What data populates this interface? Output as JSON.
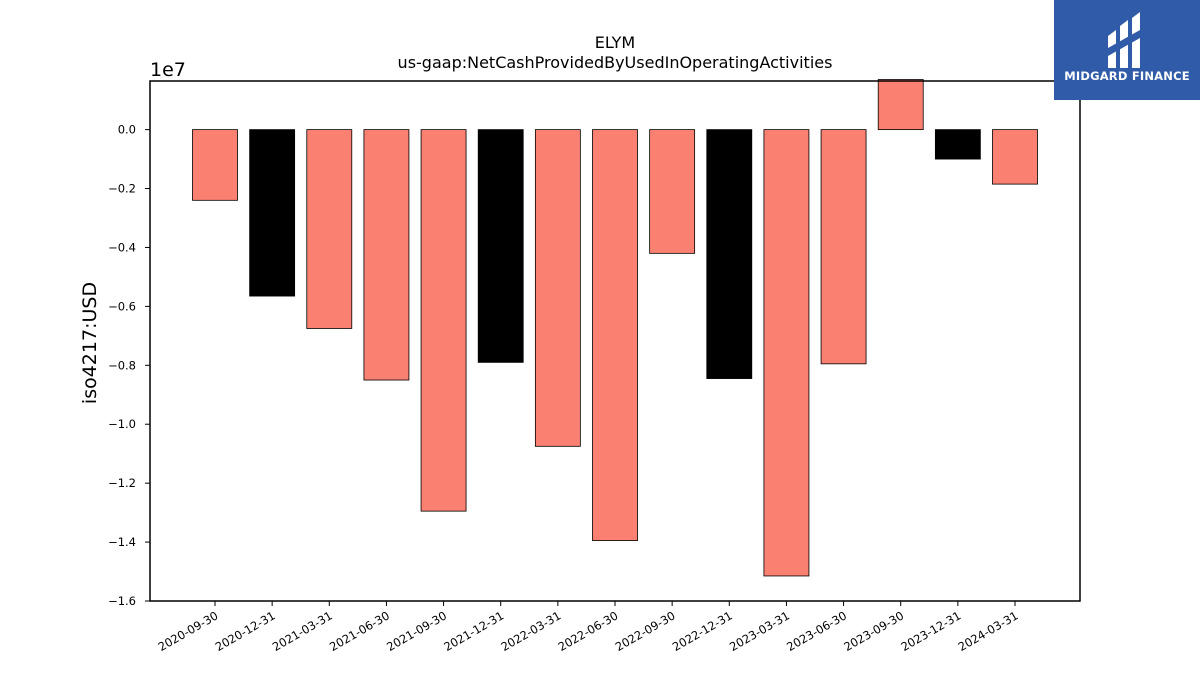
{
  "chart_data": {
    "type": "bar",
    "title": "ELYM",
    "subtitle": "us-gaap:NetCashProvidedByUsedInOperatingActivities",
    "ylabel": "iso4217:USD",
    "xlabel": "",
    "scale_label": "1e7",
    "ylim": [
      -1.6,
      0.165
    ],
    "yticks": [
      "0.0",
      "−0.2",
      "−0.4",
      "−0.6",
      "−0.8",
      "−1.0",
      "−1.2",
      "−1.4",
      "−1.6"
    ],
    "ytick_values": [
      0.0,
      -0.2,
      -0.4,
      -0.6,
      -0.8,
      -1.0,
      -1.2,
      -1.4,
      -1.6
    ],
    "categories": [
      "2020-09-30",
      "2020-12-31",
      "2021-03-31",
      "2021-06-30",
      "2021-09-30",
      "2021-12-31",
      "2022-03-31",
      "2022-06-30",
      "2022-09-30",
      "2022-12-31",
      "2023-03-31",
      "2023-06-30",
      "2023-09-30",
      "2023-12-31",
      "2024-03-31"
    ],
    "values": [
      -0.24,
      -0.565,
      -0.675,
      -0.85,
      -1.295,
      -0.79,
      -1.075,
      -1.395,
      -0.42,
      -0.845,
      -1.515,
      -0.795,
      0.17,
      -0.1,
      -0.185
    ],
    "colors": [
      "#fa8072",
      "#000000",
      "#fa8072",
      "#fa8072",
      "#fa8072",
      "#000000",
      "#fa8072",
      "#fa8072",
      "#fa8072",
      "#000000",
      "#fa8072",
      "#fa8072",
      "#fa8072",
      "#000000",
      "#fa8072"
    ],
    "grid": false,
    "legend": "none"
  },
  "brand": {
    "name": "MIDGARD FINANCE",
    "color": "#2f5ba8",
    "icon": "midgard-logo-icon"
  }
}
